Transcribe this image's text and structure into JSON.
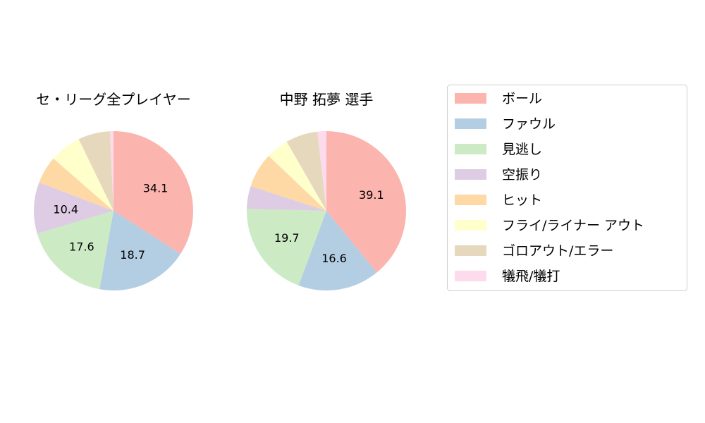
{
  "chart_data": [
    {
      "type": "pie",
      "title": "セ・リーグ全プレイヤー",
      "categories": [
        "ボール",
        "ファウル",
        "見逃し",
        "空振り",
        "ヒット",
        "フライ/ライナー アウト",
        "ゴロアウト/エラー",
        "犠飛/犠打"
      ],
      "values": [
        34.1,
        18.7,
        17.6,
        10.4,
        5.6,
        6.4,
        6.5,
        0.7
      ],
      "labels": [
        "34.1",
        "18.7",
        "17.6",
        "10.4",
        "",
        "",
        "",
        ""
      ]
    },
    {
      "type": "pie",
      "title": "中野 拓夢  選手",
      "categories": [
        "ボール",
        "ファウル",
        "見逃し",
        "空振り",
        "ヒット",
        "フライ/ライナー アウト",
        "ゴロアウト/エラー",
        "犠飛/犠打"
      ],
      "values": [
        39.1,
        16.6,
        19.7,
        4.6,
        7.1,
        4.6,
        6.5,
        1.8
      ],
      "labels": [
        "39.1",
        "16.6",
        "19.7",
        "",
        "",
        "",
        "",
        ""
      ]
    }
  ],
  "legend": {
    "placement": "right",
    "items": [
      "ボール",
      "ファウル",
      "見逃し",
      "空振り",
      "ヒット",
      "フライ/ライナー アウト",
      "ゴロアウト/エラー",
      "犠飛/犠打"
    ]
  },
  "colors": [
    "#fbb4ae",
    "#b3cde3",
    "#ccebc5",
    "#decbe4",
    "#fed9a6",
    "#ffffcc",
    "#e5d8bd",
    "#fddaec"
  ]
}
